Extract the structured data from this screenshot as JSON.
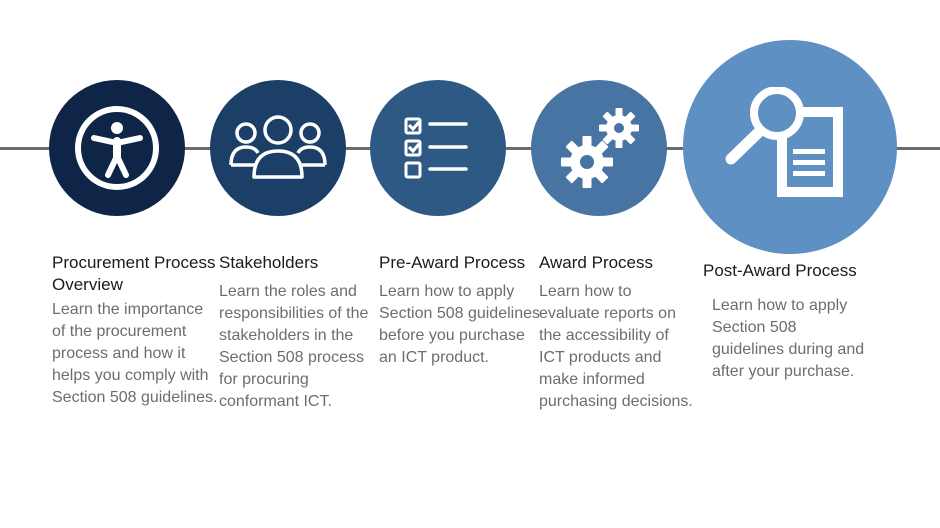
{
  "colors": {
    "line": "#6b6b6b",
    "step1": "#0f2547",
    "step2": "#1c3f68",
    "step3": "#2d5984",
    "step4": "#4874a3",
    "step5": "#5e90c3",
    "title_text": "#1b1b1b",
    "desc_text": "#6d6d6d"
  },
  "steps": [
    {
      "icon": "accessibility-icon",
      "title": "Procurement Process Overview",
      "desc_lines": [
        "Learn the importance",
        "of the procurement",
        "process and how it",
        "helps you comply with",
        "Section 508 guidelines."
      ]
    },
    {
      "icon": "people-group-icon",
      "title": "Stakeholders",
      "desc_lines": [
        "Learn the roles and",
        "responsibilities of the",
        "stakeholders in the",
        "Section 508 process",
        "for procuring",
        "conformant ICT."
      ]
    },
    {
      "icon": "checklist-icon",
      "title": "Pre-Award Process",
      "desc_lines": [
        "Learn how to apply",
        "Section 508 guidelines",
        "before you purchase",
        "an ICT product."
      ]
    },
    {
      "icon": "gears-icon",
      "title": "Award Process",
      "desc_lines": [
        "Learn how to",
        "evaluate reports on",
        "the accessibility of",
        "ICT products and",
        "make informed",
        "purchasing decisions."
      ]
    },
    {
      "icon": "magnifier-document-icon",
      "title": "Post-Award Process",
      "desc_lines": [
        "Learn how to apply",
        "Section 508",
        "guidelines during and",
        "after your purchase."
      ]
    }
  ]
}
